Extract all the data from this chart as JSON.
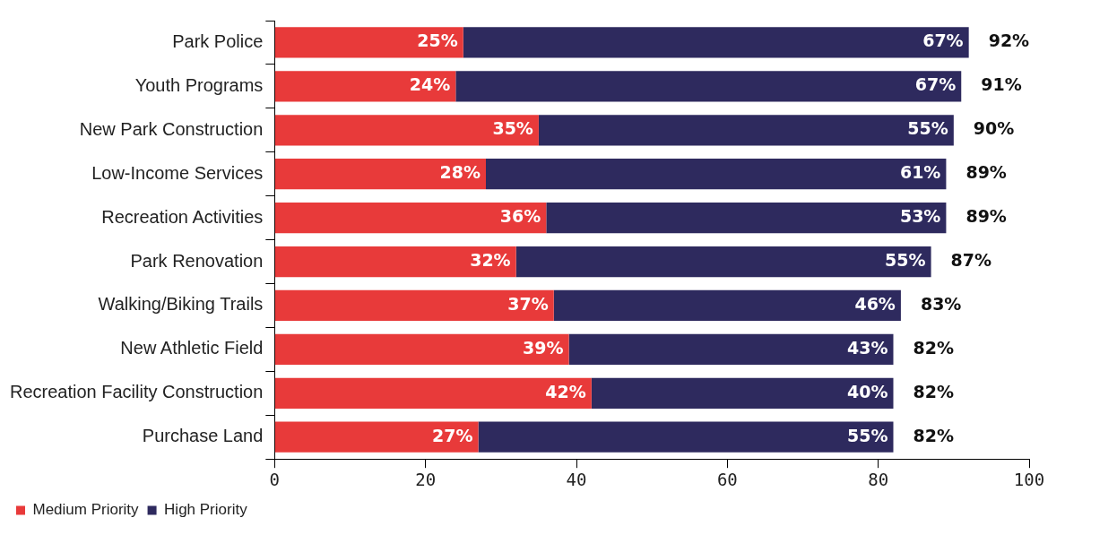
{
  "chart_data": {
    "type": "bar",
    "orientation": "horizontal",
    "stacked": true,
    "categories": [
      "Park Police",
      "Youth Programs",
      "New Park Construction",
      "Low-Income Services",
      "Recreation Activities",
      "Park Renovation",
      "Walking/Biking Trails",
      "New Athletic Field",
      "Recreation Facility Construction",
      "Purchase Land"
    ],
    "series": [
      {
        "name": "Medium Priority",
        "color": "#e83a3a",
        "values": [
          25,
          24,
          35,
          28,
          36,
          32,
          37,
          39,
          42,
          27
        ],
        "value_labels": [
          "25%",
          "24%",
          "35%",
          "28%",
          "36%",
          "32%",
          "37%",
          "39%",
          "42%",
          "27%"
        ]
      },
      {
        "name": "High Priority",
        "color": "#2e2a5e",
        "values": [
          67,
          67,
          55,
          61,
          53,
          55,
          46,
          43,
          40,
          55
        ],
        "value_labels": [
          "67%",
          "67%",
          "55%",
          "61%",
          "53%",
          "55%",
          "46%",
          "43%",
          "40%",
          "55%"
        ]
      }
    ],
    "totals": [
      "92%",
      "91%",
      "90%",
      "89%",
      "89%",
      "87%",
      "83%",
      "82%",
      "82%",
      "82%"
    ],
    "xlim": [
      0,
      100
    ],
    "xticks": [
      0,
      20,
      40,
      60,
      80,
      100
    ],
    "grid": false,
    "legend": "bottom left"
  }
}
